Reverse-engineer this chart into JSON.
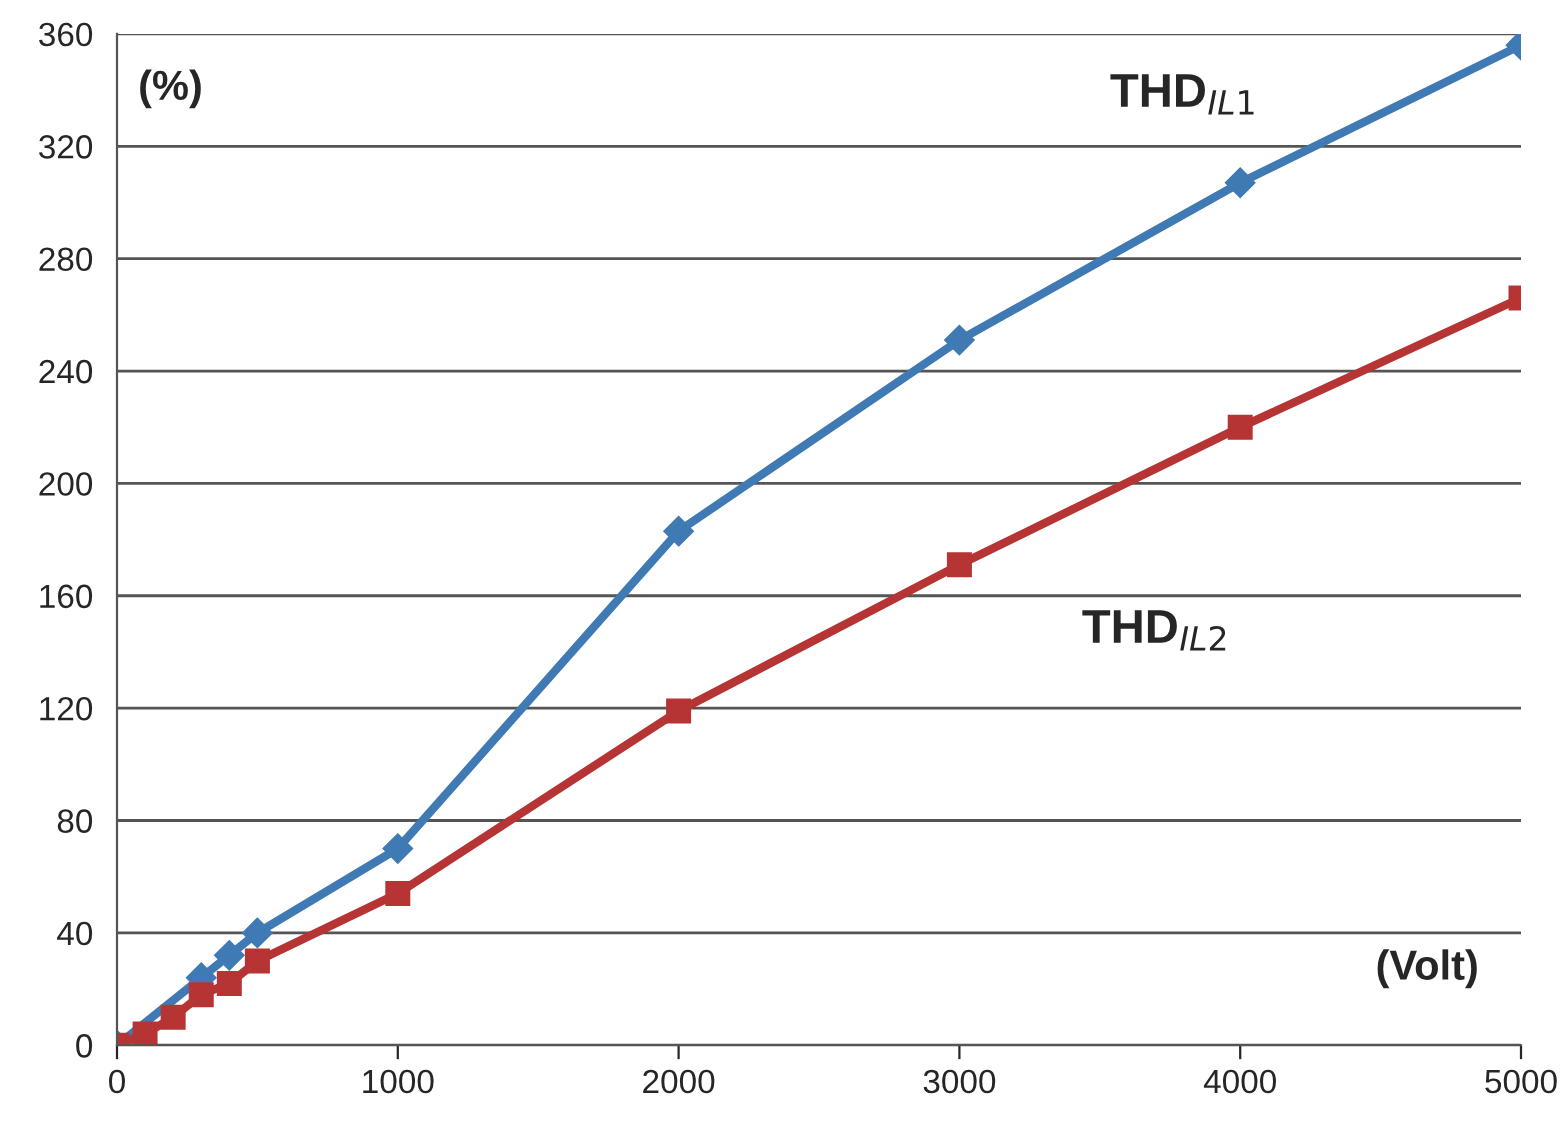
{
  "chart_data": {
    "type": "line",
    "xlabel": "(Volt)",
    "ylabel": "(%)",
    "x": [
      0,
      50,
      100,
      200,
      300,
      400,
      500,
      1000,
      2000,
      3000,
      4000,
      5000
    ],
    "series": [
      {
        "name": "THD$_{IL1}$",
        "color": "#3f7ab5",
        "marker": "diamond",
        "values": [
          0,
          null,
          null,
          null,
          24,
          32,
          40,
          70,
          183,
          251,
          307,
          356
        ]
      },
      {
        "name": "THD$_{IL2}$",
        "color": "#b63434",
        "marker": "square",
        "values": [
          0,
          null,
          4,
          10,
          18,
          22,
          30,
          54,
          119,
          171,
          220,
          266
        ]
      }
    ],
    "xlim": [
      0,
      5000
    ],
    "xticks": [
      0,
      1000,
      2000,
      3000,
      4000,
      5000
    ],
    "ylim": [
      0,
      360
    ],
    "yticks": [
      0,
      40,
      80,
      120,
      160,
      200,
      240,
      280,
      320,
      360
    ],
    "grid": "y",
    "legend": false,
    "line_style": "solid"
  }
}
